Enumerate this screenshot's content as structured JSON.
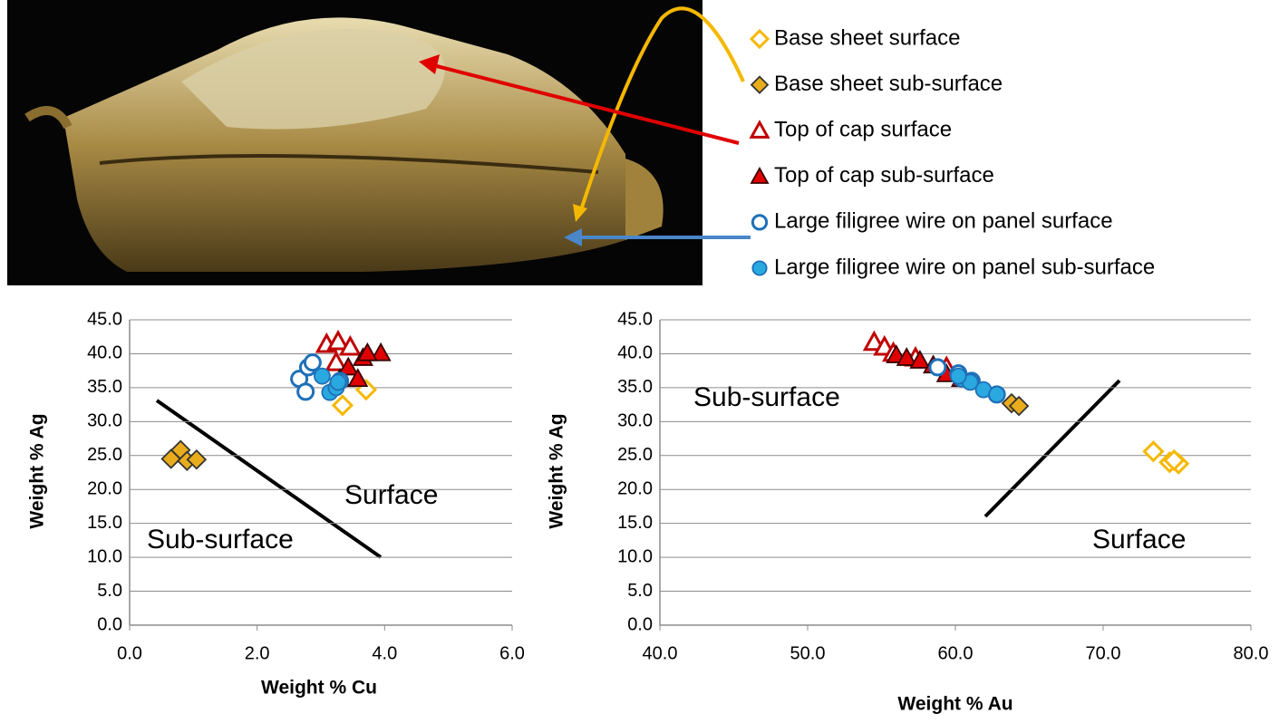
{
  "chart_data": [
    {
      "type": "scatter",
      "x_label": "Weight % Cu",
      "y_label": "Weight % Ag",
      "xlim": [
        0,
        6
      ],
      "ylim": [
        0,
        45
      ],
      "xticks": [
        {
          "value": 0,
          "label": "0.0"
        },
        {
          "value": 2,
          "label": "2.0"
        },
        {
          "value": 4,
          "label": "4.0"
        },
        {
          "value": 6,
          "label": "6.0"
        }
      ],
      "yticks": [
        {
          "value": 0,
          "label": "0.0"
        },
        {
          "value": 5,
          "label": "5.0"
        },
        {
          "value": 10,
          "label": "10.0"
        },
        {
          "value": 15,
          "label": "15.0"
        },
        {
          "value": 20,
          "label": "20.0"
        },
        {
          "value": 25,
          "label": "25.0"
        },
        {
          "value": 30,
          "label": "30.0"
        },
        {
          "value": 35,
          "label": "35.0"
        },
        {
          "value": 40,
          "label": "40.0"
        },
        {
          "value": 45,
          "label": "45.0"
        }
      ],
      "grid": true,
      "annotations": [
        "Surface",
        "Sub-surface"
      ],
      "series": [
        {
          "name": "Base sheet surface",
          "marker": "diamond",
          "filled": false,
          "color": "#f5b800",
          "x": [
            3.34,
            3.71
          ],
          "values": [
            32.4,
            34.7
          ]
        },
        {
          "name": "Base sheet sub-surface",
          "marker": "diamond",
          "filled": true,
          "color": "#e8ac1c",
          "edgecolor": "#333333",
          "x": [
            0.65,
            0.8,
            0.9,
            1.05
          ],
          "values": [
            24.5,
            25.8,
            24.2,
            24.4
          ]
        },
        {
          "name": "Top of cap surface",
          "marker": "triangle",
          "filled": false,
          "color": "#c00000",
          "x": [
            3.09,
            3.27,
            3.46,
            3.24
          ],
          "values": [
            41.4,
            41.8,
            41.0,
            38.7
          ]
        },
        {
          "name": "Top of cap sub-surface",
          "marker": "triangle",
          "filled": true,
          "color": "#e00000",
          "edgecolor": "#3a0000",
          "x": [
            3.43,
            3.66,
            3.94,
            3.73,
            3.3,
            3.58
          ],
          "values": [
            38.0,
            39.4,
            40.1,
            40.1,
            36.3,
            36.3
          ]
        },
        {
          "name": "Large filigree wire on panel surface",
          "marker": "circle",
          "filled": false,
          "color": "#1f70b8",
          "x": [
            2.66,
            2.8,
            2.87,
            2.76,
            3.3
          ],
          "values": [
            36.3,
            38.0,
            38.7,
            34.4,
            36.0
          ]
        },
        {
          "name": "Large filigree wire on panel sub-surface",
          "marker": "circle",
          "filled": true,
          "color": "#2aa8e0",
          "edgecolor": "#1f70b8",
          "x": [
            3.02,
            3.14,
            3.24,
            3.27
          ],
          "values": [
            36.7,
            34.3,
            35.0,
            35.8
          ]
        }
      ]
    },
    {
      "type": "scatter",
      "x_label": "Weight % Au",
      "y_label": "Weight % Ag",
      "xlim": [
        40,
        80
      ],
      "ylim": [
        0,
        45
      ],
      "xticks": [
        {
          "value": 40,
          "label": "40.0"
        },
        {
          "value": 50,
          "label": "50.0"
        },
        {
          "value": 60,
          "label": "60.0"
        },
        {
          "value": 70,
          "label": "70.0"
        },
        {
          "value": 80,
          "label": "80.0"
        }
      ],
      "yticks": [
        {
          "value": 0,
          "label": "0.0"
        },
        {
          "value": 5,
          "label": "5.0"
        },
        {
          "value": 10,
          "label": "10.0"
        },
        {
          "value": 15,
          "label": "15.0"
        },
        {
          "value": 20,
          "label": "20.0"
        },
        {
          "value": 25,
          "label": "25.0"
        },
        {
          "value": 30,
          "label": "30.0"
        },
        {
          "value": 35,
          "label": "35.0"
        },
        {
          "value": 40,
          "label": "40.0"
        },
        {
          "value": 45,
          "label": "45.0"
        }
      ],
      "grid": true,
      "annotations": [
        "Sub-surface",
        "Surface"
      ],
      "series": [
        {
          "marker": "diamond",
          "filled": false,
          "color": "#f5b800",
          "x": [
            73.4,
            74.5,
            75.1,
            74.8
          ],
          "values": [
            25.6,
            24.0,
            23.8,
            24.3
          ]
        },
        {
          "marker": "diamond",
          "filled": true,
          "color": "#e8ac1c",
          "edgecolor": "#333333",
          "x": [
            63.8,
            64.3
          ],
          "values": [
            32.7,
            32.3
          ]
        },
        {
          "marker": "triangle",
          "filled": false,
          "color": "#c00000",
          "x": [
            54.5,
            55.2,
            55.8,
            57.3,
            59.4
          ],
          "values": [
            41.7,
            41.0,
            40.1,
            39.4,
            38.0
          ]
        },
        {
          "marker": "triangle",
          "filled": true,
          "color": "#e00000",
          "edgecolor": "#3a0000",
          "x": [
            56.0,
            56.7,
            57.6,
            58.5,
            59.4,
            60.4
          ],
          "values": [
            39.8,
            39.4,
            39.0,
            38.3,
            37.0,
            36.3
          ]
        },
        {
          "marker": "circle",
          "filled": false,
          "color": "#1f70b8",
          "x": [
            58.8,
            60.2,
            61.1,
            62.8
          ],
          "values": [
            38.0,
            37.1,
            36.0,
            34.0
          ]
        },
        {
          "marker": "circle",
          "filled": true,
          "color": "#2aa8e0",
          "edgecolor": "#1f70b8",
          "x": [
            60.4,
            61.0,
            61.9,
            62.8,
            60.2
          ],
          "values": [
            36.3,
            35.8,
            34.7,
            34.0,
            36.7
          ]
        }
      ]
    }
  ]
}
